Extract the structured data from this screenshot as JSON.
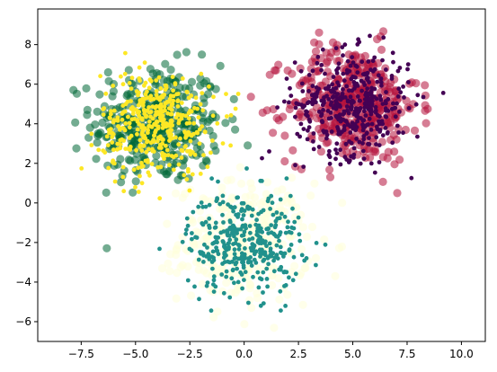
{
  "chart_data": {
    "type": "scatter",
    "title": "",
    "xlabel": "",
    "ylabel": "",
    "xlim": [
      -9.5,
      11.1
    ],
    "ylim": [
      -7,
      9.8
    ],
    "xticks": [
      -7.5,
      -5.0,
      -2.5,
      0.0,
      2.5,
      5.0,
      7.5,
      10.0
    ],
    "xtick_labels": [
      "−7.5",
      "−5.0",
      "−2.5",
      "0.0",
      "2.5",
      "5.0",
      "7.5",
      "10.0"
    ],
    "yticks": [
      -6,
      -4,
      -2,
      0,
      2,
      4,
      6,
      8
    ],
    "ytick_labels": [
      "−6",
      "−4",
      "−2",
      "0",
      "2",
      "4",
      "6",
      "8"
    ],
    "grid": false,
    "legend": "none",
    "series": [
      {
        "colormap": "YlGn",
        "colors": [
          "#ffffd9",
          "#006837"
        ],
        "marker_size": "large",
        "alpha": 0.55,
        "clusters": [
          {
            "color": "#006837",
            "center": [
              -4.0,
              4.0
            ],
            "std": 1.5,
            "count": 360
          },
          {
            "color": "#ffffd9",
            "center": [
              0.0,
              -2.0
            ],
            "std": 1.5,
            "count": 320
          }
        ]
      },
      {
        "colormap": "RdPu",
        "colors": [
          "#ae0f3a"
        ],
        "marker_size": "large",
        "alpha": 0.55,
        "clusters": [
          {
            "color": "#b5123c",
            "center": [
              5.0,
              5.0
            ],
            "std": 1.5,
            "count": 420
          }
        ]
      },
      {
        "colormap": "viridis",
        "colors": [
          "#440154",
          "#21918c",
          "#fde725"
        ],
        "marker_size": "small",
        "alpha": 1.0,
        "clusters": [
          {
            "color": "#440154",
            "center": [
              5.0,
              5.0
            ],
            "std": 1.3,
            "count": 420
          },
          {
            "color": "#21918c",
            "center": [
              0.0,
              -2.0
            ],
            "std": 1.3,
            "count": 360
          },
          {
            "color": "#fde725",
            "center": [
              -4.0,
              4.0
            ],
            "std": 1.3,
            "count": 400
          }
        ]
      }
    ]
  }
}
